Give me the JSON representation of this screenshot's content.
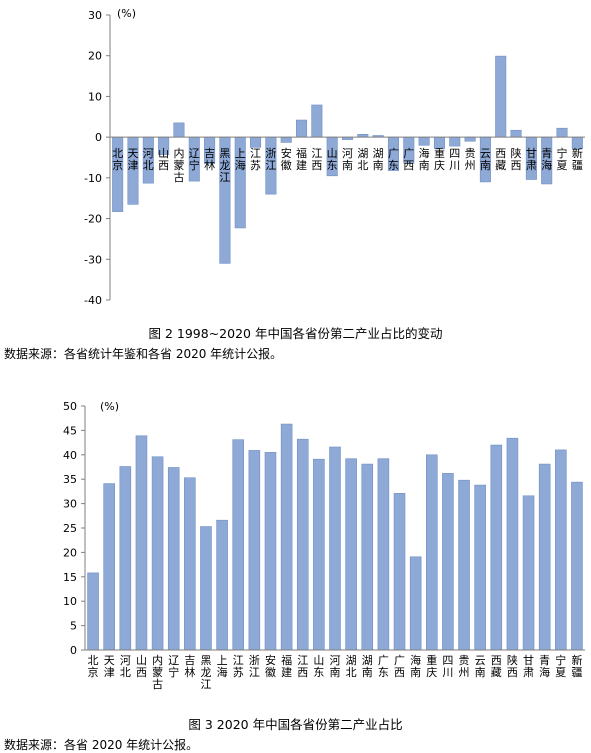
{
  "colors": {
    "bar": "#8ea9d6",
    "bar_stroke": "#6f8fc4",
    "axis": "#7f7f7f"
  },
  "chart_data": [
    {
      "type": "bar",
      "unit": "(%)",
      "ylim": [
        -40,
        30
      ],
      "yticks": [
        30,
        20,
        10,
        0,
        -10,
        -20,
        -30,
        -40
      ],
      "grid": false,
      "categories": [
        "北京",
        "天津",
        "河北",
        "山西",
        "内蒙古",
        "辽宁",
        "吉林",
        "黑龙江",
        "上海",
        "江苏",
        "浙江",
        "安徽",
        "福建",
        "江西",
        "山东",
        "河南",
        "湖北",
        "湖南",
        "广东",
        "广西",
        "海南",
        "重庆",
        "四川",
        "贵州",
        "云南",
        "西藏",
        "陕西",
        "甘肃",
        "青海",
        "宁夏",
        "新疆"
      ],
      "values": [
        -18.3,
        -16.5,
        -11.3,
        -4.3,
        3.5,
        -10.8,
        -6.5,
        -31.0,
        -22.3,
        -2.5,
        -14.0,
        -1.3,
        4.2,
        7.9,
        -9.5,
        -0.6,
        0.7,
        0.4,
        -8.2,
        -6.4,
        -2.0,
        -2.8,
        -2.2,
        -1.0,
        -11.0,
        19.9,
        1.7,
        -10.4,
        -11.5,
        2.2,
        -2.9
      ],
      "title": "图 2  1998~2020 年中国各省份第二产业占比的变动",
      "source": "数据来源：各省统计年鉴和各省 2020 年统计公报。"
    },
    {
      "type": "bar",
      "unit": "(%)",
      "ylim": [
        0,
        50
      ],
      "yticks": [
        50,
        45,
        40,
        35,
        30,
        25,
        20,
        15,
        10,
        5,
        0
      ],
      "grid": false,
      "categories": [
        "北京",
        "天津",
        "河北",
        "山西",
        "内蒙古",
        "辽宁",
        "吉林",
        "黑龙江",
        "上海",
        "江苏",
        "浙江",
        "安徽",
        "福建",
        "江西",
        "山东",
        "河南",
        "湖北",
        "湖南",
        "广东",
        "广西",
        "海南",
        "重庆",
        "四川",
        "贵州",
        "云南",
        "西藏",
        "陕西",
        "甘肃",
        "青海",
        "宁夏",
        "新疆"
      ],
      "values": [
        15.8,
        34.1,
        37.6,
        43.9,
        39.6,
        37.4,
        35.3,
        25.3,
        26.6,
        43.1,
        40.9,
        40.5,
        46.3,
        43.2,
        39.1,
        41.6,
        39.2,
        38.1,
        39.2,
        32.1,
        19.1,
        40.0,
        36.2,
        34.8,
        33.8,
        42.0,
        43.4,
        31.6,
        38.1,
        41.0,
        34.4
      ],
      "title": "图 3   2020 年中国各省份第二产业占比",
      "source": "数据来源：各省 2020 年统计公报。"
    }
  ]
}
